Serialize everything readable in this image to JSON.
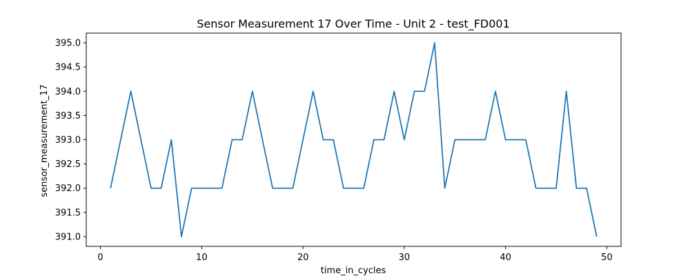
{
  "chart_data": {
    "type": "line",
    "title": "Sensor Measurement 17 Over Time - Unit 2 - test_FD001",
    "xlabel": "time_in_cycles",
    "ylabel": "sensor_measurement_17",
    "xlim": [
      -1.4,
      51.4
    ],
    "ylim": [
      390.8,
      395.2
    ],
    "x_ticks": [
      0,
      10,
      20,
      30,
      40,
      50
    ],
    "y_ticks": [
      391.0,
      391.5,
      392.0,
      392.5,
      393.0,
      393.5,
      394.0,
      394.5,
      395.0
    ],
    "grid": false,
    "series": [
      {
        "color": "#1f77b4",
        "x": [
          1,
          2,
          3,
          4,
          5,
          6,
          7,
          8,
          9,
          10,
          11,
          12,
          13,
          14,
          15,
          16,
          17,
          18,
          19,
          20,
          21,
          22,
          23,
          24,
          25,
          26,
          27,
          28,
          29,
          30,
          31,
          32,
          33,
          34,
          35,
          36,
          37,
          38,
          39,
          40,
          41,
          42,
          43,
          44,
          45,
          46,
          47,
          48,
          49
        ],
        "y": [
          392,
          393,
          394,
          393,
          392,
          392,
          393,
          391,
          392,
          392,
          392,
          392,
          393,
          393,
          394,
          393,
          392,
          392,
          392,
          393,
          394,
          393,
          393,
          392,
          392,
          392,
          393,
          393,
          394,
          393,
          394,
          394,
          395,
          392,
          393,
          393,
          393,
          393,
          394,
          393,
          393,
          393,
          392,
          392,
          392,
          394,
          392,
          392,
          391
        ]
      }
    ]
  }
}
